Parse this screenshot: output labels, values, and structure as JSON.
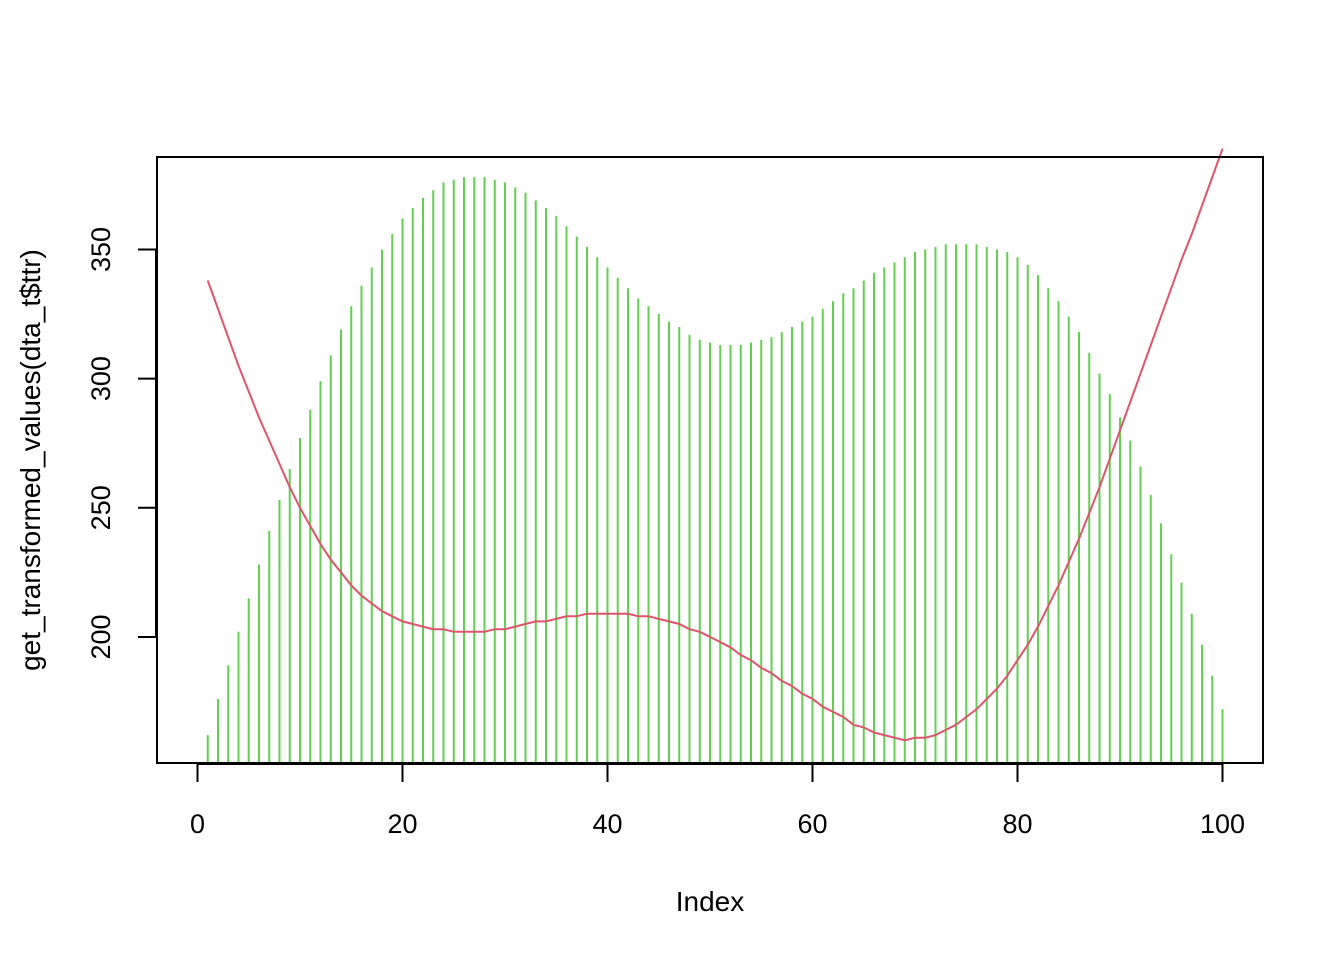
{
  "chart_data": {
    "type": "line",
    "title": "",
    "xlabel": "Index",
    "ylabel": "get_transformed_values(dta_t$ttr)",
    "xlim": [
      -3.95,
      103.95
    ],
    "ylim": [
      151.2,
      385.8
    ],
    "x_ticks": [
      0,
      20,
      40,
      60,
      80,
      100
    ],
    "y_ticks": [
      200,
      250,
      300,
      350
    ],
    "grid": false,
    "legend": "none",
    "colors": {
      "histogram": "#61D04F",
      "curve": "#DF536B",
      "frame": "#000000"
    },
    "series": [
      {
        "style": "histogram",
        "x": [
          1,
          2,
          3,
          4,
          5,
          6,
          7,
          8,
          9,
          10,
          11,
          12,
          13,
          14,
          15,
          16,
          17,
          18,
          19,
          20,
          21,
          22,
          23,
          24,
          25,
          26,
          27,
          28,
          29,
          30,
          31,
          32,
          33,
          34,
          35,
          36,
          37,
          38,
          39,
          40,
          41,
          42,
          43,
          44,
          45,
          46,
          47,
          48,
          49,
          50,
          51,
          52,
          53,
          54,
          55,
          56,
          57,
          58,
          59,
          60,
          61,
          62,
          63,
          64,
          65,
          66,
          67,
          68,
          69,
          70,
          71,
          72,
          73,
          74,
          75,
          76,
          77,
          78,
          79,
          80,
          81,
          82,
          83,
          84,
          85,
          86,
          87,
          88,
          89,
          90,
          91,
          92,
          93,
          94,
          95,
          96,
          97,
          98,
          99,
          100
        ],
        "values": [
          162,
          176,
          189,
          202,
          215,
          228,
          241,
          253,
          265,
          277,
          288,
          299,
          309,
          319,
          328,
          336,
          343,
          350,
          356,
          362,
          366,
          370,
          373,
          376,
          377,
          378,
          378,
          378,
          377,
          376,
          374,
          372,
          369,
          366,
          363,
          359,
          355,
          351,
          347,
          343,
          339,
          335,
          331,
          328,
          325,
          322,
          320,
          317,
          315,
          314,
          313,
          313,
          313,
          314,
          315,
          316,
          318,
          320,
          322,
          324,
          327,
          330,
          333,
          335,
          338,
          341,
          343,
          345,
          347,
          349,
          350,
          351,
          352,
          352,
          352,
          352,
          351,
          350,
          349,
          347,
          344,
          340,
          335,
          330,
          324,
          318,
          310,
          302,
          294,
          285,
          276,
          266,
          255,
          244,
          232,
          221,
          209,
          197,
          185,
          172
        ]
      },
      {
        "style": "line",
        "x": [
          1,
          2,
          3,
          4,
          5,
          6,
          7,
          8,
          9,
          10,
          11,
          12,
          13,
          14,
          15,
          16,
          17,
          18,
          19,
          20,
          21,
          22,
          23,
          24,
          25,
          26,
          27,
          28,
          29,
          30,
          31,
          32,
          33,
          34,
          35,
          36,
          37,
          38,
          39,
          40,
          41,
          42,
          43,
          44,
          45,
          46,
          47,
          48,
          49,
          50,
          51,
          52,
          53,
          54,
          55,
          56,
          57,
          58,
          59,
          60,
          61,
          62,
          63,
          64,
          65,
          66,
          67,
          68,
          69,
          70,
          71,
          72,
          73,
          74,
          75,
          76,
          77,
          78,
          79,
          80,
          81,
          82,
          83,
          84,
          85,
          86,
          87,
          88,
          89,
          90,
          91,
          92,
          93,
          94,
          95,
          96,
          97,
          98,
          99,
          100
        ],
        "values": [
          338,
          327,
          316,
          305,
          295,
          285,
          276,
          267,
          258,
          250,
          243,
          236,
          230,
          225,
          220,
          216,
          213,
          210,
          208,
          206,
          205,
          204,
          203,
          203,
          202,
          202,
          202,
          202,
          203,
          203,
          204,
          205,
          206,
          206,
          207,
          208,
          208,
          209,
          209,
          209,
          209,
          209,
          208,
          208,
          207,
          206,
          205,
          203,
          202,
          200,
          198,
          196,
          193,
          191,
          188,
          186,
          183,
          181,
          178,
          176,
          173,
          171,
          169,
          166,
          165,
          163,
          162,
          161,
          160,
          161,
          161,
          162,
          164,
          166,
          169,
          172,
          176,
          180,
          185,
          191,
          197,
          204,
          212,
          220,
          229,
          238,
          248,
          258,
          269,
          280,
          291,
          302,
          313,
          324,
          335,
          346,
          356,
          367,
          378,
          389
        ]
      }
    ]
  }
}
